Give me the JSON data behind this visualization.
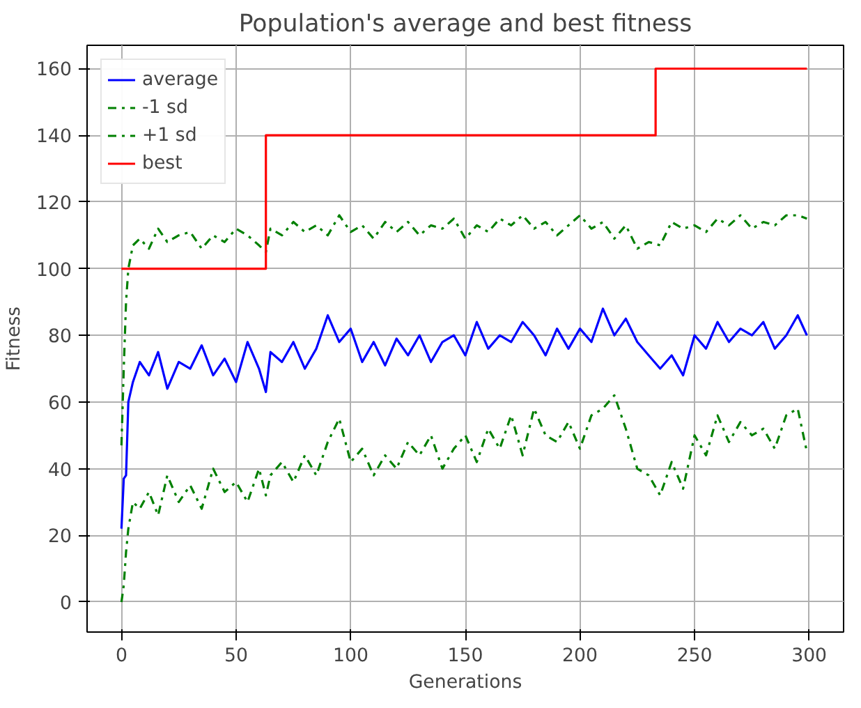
{
  "chart_data": {
    "type": "line",
    "title": "Population's average and best fitness",
    "xlabel": "Generations",
    "ylabel": "Fitness",
    "x": [
      0,
      1,
      2,
      3,
      5,
      8,
      12,
      16,
      20,
      25,
      30,
      35,
      40,
      45,
      50,
      55,
      60,
      63,
      65,
      70,
      75,
      80,
      85,
      90,
      95,
      100,
      105,
      110,
      115,
      120,
      125,
      130,
      135,
      140,
      145,
      150,
      155,
      160,
      165,
      170,
      175,
      180,
      185,
      190,
      195,
      200,
      205,
      210,
      215,
      220,
      225,
      230,
      235,
      240,
      245,
      250,
      255,
      260,
      265,
      270,
      275,
      280,
      285,
      290,
      295,
      299
    ],
    "series": [
      {
        "name": "average",
        "color": "#0000ff",
        "line_style": "solid",
        "values": [
          22,
          37,
          38,
          60,
          66,
          72,
          68,
          75,
          64,
          72,
          70,
          77,
          68,
          73,
          66,
          78,
          70,
          63,
          75,
          72,
          78,
          70,
          76,
          86,
          78,
          82,
          72,
          78,
          71,
          79,
          74,
          80,
          72,
          78,
          80,
          74,
          84,
          76,
          80,
          78,
          84,
          80,
          74,
          82,
          76,
          82,
          78,
          88,
          80,
          85,
          78,
          74,
          70,
          74,
          68,
          80,
          76,
          84,
          78,
          82,
          80,
          84,
          76,
          80,
          86,
          80
        ]
      },
      {
        "name": "-1 sd",
        "color": "#008000",
        "line_style": "dashdot",
        "values": [
          0,
          5,
          15,
          22,
          30,
          28,
          33,
          26,
          38,
          30,
          35,
          28,
          40,
          33,
          36,
          30,
          40,
          32,
          38,
          42,
          36,
          44,
          38,
          48,
          55,
          42,
          46,
          38,
          44,
          40,
          48,
          44,
          50,
          40,
          46,
          50,
          42,
          52,
          46,
          56,
          44,
          58,
          50,
          48,
          54,
          46,
          56,
          58,
          62,
          52,
          40,
          38,
          32,
          42,
          34,
          50,
          44,
          56,
          48,
          54,
          50,
          52,
          46,
          56,
          58,
          45
        ]
      },
      {
        "name": "+1 sd",
        "color": "#008000",
        "line_style": "dashdot",
        "values": [
          47,
          70,
          90,
          100,
          107,
          109,
          106,
          112,
          108,
          110,
          111,
          106,
          110,
          108,
          112,
          110,
          107,
          105,
          112,
          110,
          114,
          111,
          113,
          110,
          116,
          111,
          113,
          109,
          114,
          111,
          114,
          110,
          113,
          112,
          115,
          109,
          113,
          111,
          115,
          113,
          116,
          112,
          114,
          110,
          113,
          116,
          112,
          114,
          109,
          113,
          106,
          108,
          107,
          114,
          112,
          113,
          111,
          115,
          113,
          116,
          112,
          114,
          113,
          116,
          116,
          115
        ]
      },
      {
        "name": "best",
        "color": "#ff0000",
        "type": "step",
        "line_style": "solid",
        "x": [
          0,
          63,
          233,
          299
        ],
        "values": [
          100,
          140,
          160,
          160
        ]
      }
    ],
    "xlim": [
      -15,
      315
    ],
    "ylim": [
      -9,
      167
    ],
    "xticks": [
      0,
      50,
      100,
      150,
      200,
      250,
      300
    ],
    "yticks": [
      0,
      20,
      40,
      60,
      80,
      100,
      120,
      140,
      160
    ],
    "grid": true,
    "legend": "top left",
    "marker": "none"
  }
}
